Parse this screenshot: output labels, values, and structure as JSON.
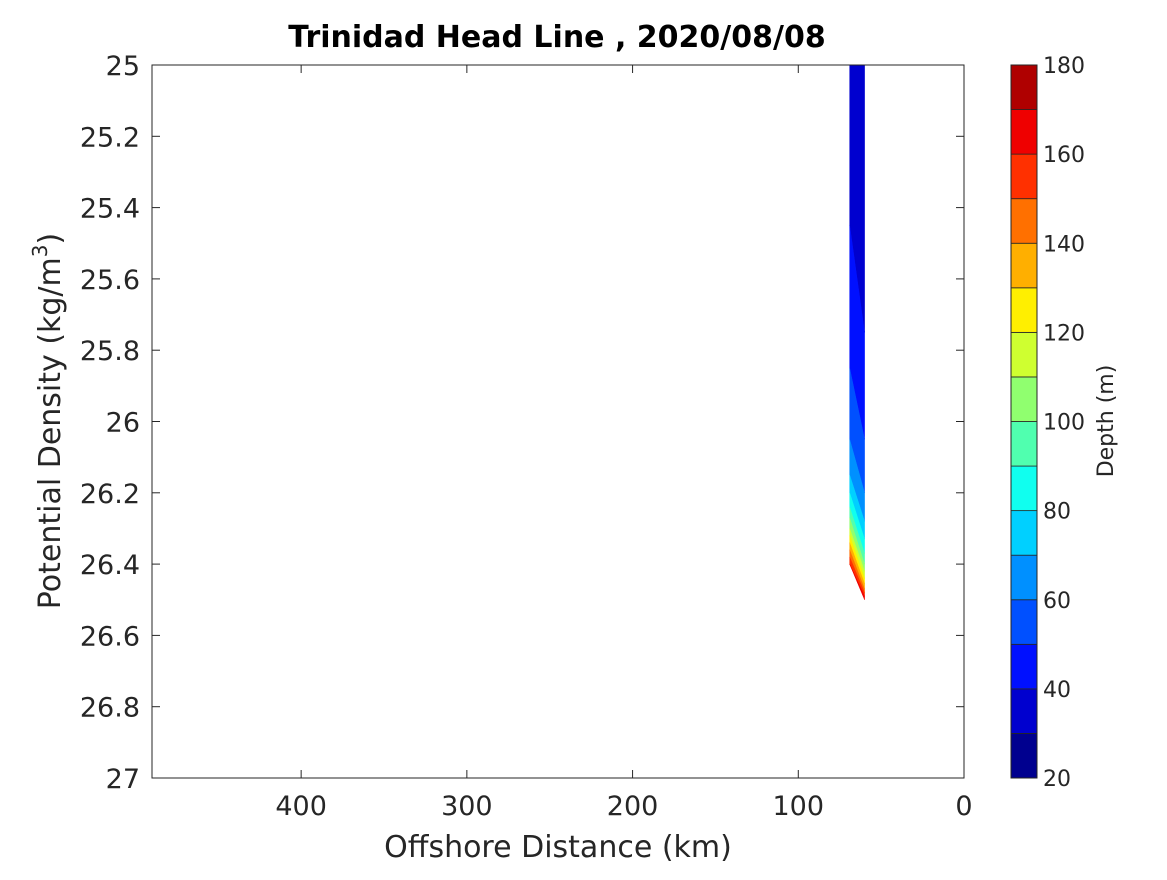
{
  "chart_data": {
    "type": "contour",
    "title": "Trinidad Head Line , 2020/08/08",
    "xlabel": "Offshore Distance (km)",
    "ylabel_main": "Potential Density (kg/m",
    "ylabel_sup": "3",
    "ylabel_close": ")",
    "colorbar_label": "Depth (m)",
    "xlim": [
      490,
      0
    ],
    "x_reversed": true,
    "ylim": [
      25,
      27
    ],
    "y_reversed": true,
    "x_ticks": [
      400,
      300,
      200,
      100,
      0
    ],
    "x_tick_labels": [
      "400",
      "300",
      "200",
      "100",
      "0"
    ],
    "y_ticks": [
      25,
      25.2,
      25.4,
      25.6,
      25.8,
      26,
      26.2,
      26.4,
      26.6,
      26.8,
      27
    ],
    "y_tick_labels": [
      "25",
      "25.2",
      "25.4",
      "25.6",
      "25.8",
      "26",
      "26.2",
      "26.4",
      "26.6",
      "26.8",
      "27"
    ],
    "colorbar_range": [
      20,
      180
    ],
    "colorbar_ticks": [
      20,
      40,
      60,
      80,
      100,
      120,
      140,
      160,
      180
    ],
    "colorbar_tick_labels": [
      "20",
      "40",
      "60",
      "80",
      "100",
      "120",
      "140",
      "160",
      "180"
    ],
    "levels": [
      20,
      30,
      40,
      50,
      60,
      70,
      80,
      90,
      100,
      110,
      120,
      130,
      140,
      150,
      160,
      170,
      180
    ],
    "level_colors": [
      "#00008F",
      "#0000CF",
      "#0010FF",
      "#0050FF",
      "#0090FF",
      "#00D0FF",
      "#10FFEF",
      "#50FFAF",
      "#90FF6F",
      "#CFFF30",
      "#FFEF00",
      "#FFAF00",
      "#FF7000",
      "#FF3000",
      "#EF0000",
      "#AF0000"
    ],
    "data_region": {
      "x_range_km": [
        60,
        69
      ],
      "sigma_range": [
        25,
        26.5
      ],
      "bands": [
        {
          "depth_min": 30,
          "depth_max": 40,
          "sigma_left_top": 25.0,
          "sigma_left_bottom": 25.45,
          "sigma_right_top": 25.0,
          "sigma_right_bottom": 25.75
        },
        {
          "depth_min": 40,
          "depth_max": 50,
          "sigma_left_top": 25.45,
          "sigma_left_bottom": 25.85,
          "sigma_right_top": 25.75,
          "sigma_right_bottom": 26.05
        },
        {
          "depth_min": 50,
          "depth_max": 60,
          "sigma_left_top": 25.85,
          "sigma_left_bottom": 26.05,
          "sigma_right_top": 26.05,
          "sigma_right_bottom": 26.2
        },
        {
          "depth_min": 60,
          "depth_max": 70,
          "sigma_left_top": 26.05,
          "sigma_left_bottom": 26.15,
          "sigma_right_top": 26.2,
          "sigma_right_bottom": 26.28
        },
        {
          "depth_min": 70,
          "depth_max": 80,
          "sigma_left_top": 26.15,
          "sigma_left_bottom": 26.2,
          "sigma_right_top": 26.28,
          "sigma_right_bottom": 26.33
        },
        {
          "depth_min": 80,
          "depth_max": 90,
          "sigma_left_top": 26.2,
          "sigma_left_bottom": 26.24,
          "sigma_right_top": 26.33,
          "sigma_right_bottom": 26.37
        },
        {
          "depth_min": 90,
          "depth_max": 100,
          "sigma_left_top": 26.24,
          "sigma_left_bottom": 26.27,
          "sigma_right_top": 26.37,
          "sigma_right_bottom": 26.4
        },
        {
          "depth_min": 100,
          "depth_max": 110,
          "sigma_left_top": 26.27,
          "sigma_left_bottom": 26.3,
          "sigma_right_top": 26.4,
          "sigma_right_bottom": 26.42
        },
        {
          "depth_min": 110,
          "depth_max": 120,
          "sigma_left_top": 26.3,
          "sigma_left_bottom": 26.32,
          "sigma_right_top": 26.42,
          "sigma_right_bottom": 26.44
        },
        {
          "depth_min": 120,
          "depth_max": 130,
          "sigma_left_top": 26.32,
          "sigma_left_bottom": 26.34,
          "sigma_right_top": 26.44,
          "sigma_right_bottom": 26.455
        },
        {
          "depth_min": 130,
          "depth_max": 140,
          "sigma_left_top": 26.34,
          "sigma_left_bottom": 26.36,
          "sigma_right_top": 26.455,
          "sigma_right_bottom": 26.47
        },
        {
          "depth_min": 140,
          "depth_max": 150,
          "sigma_left_top": 26.36,
          "sigma_left_bottom": 26.38,
          "sigma_right_top": 26.47,
          "sigma_right_bottom": 26.48
        },
        {
          "depth_min": 150,
          "depth_max": 160,
          "sigma_left_top": 26.38,
          "sigma_left_bottom": 26.4,
          "sigma_right_top": 26.48,
          "sigma_right_bottom": 26.49
        },
        {
          "depth_min": 160,
          "depth_max": 170,
          "sigma_left_top": 26.4,
          "sigma_left_bottom": 26.4,
          "sigma_right_top": 26.49,
          "sigma_right_bottom": 26.5
        }
      ]
    },
    "grid": false,
    "colormap": "jet"
  }
}
